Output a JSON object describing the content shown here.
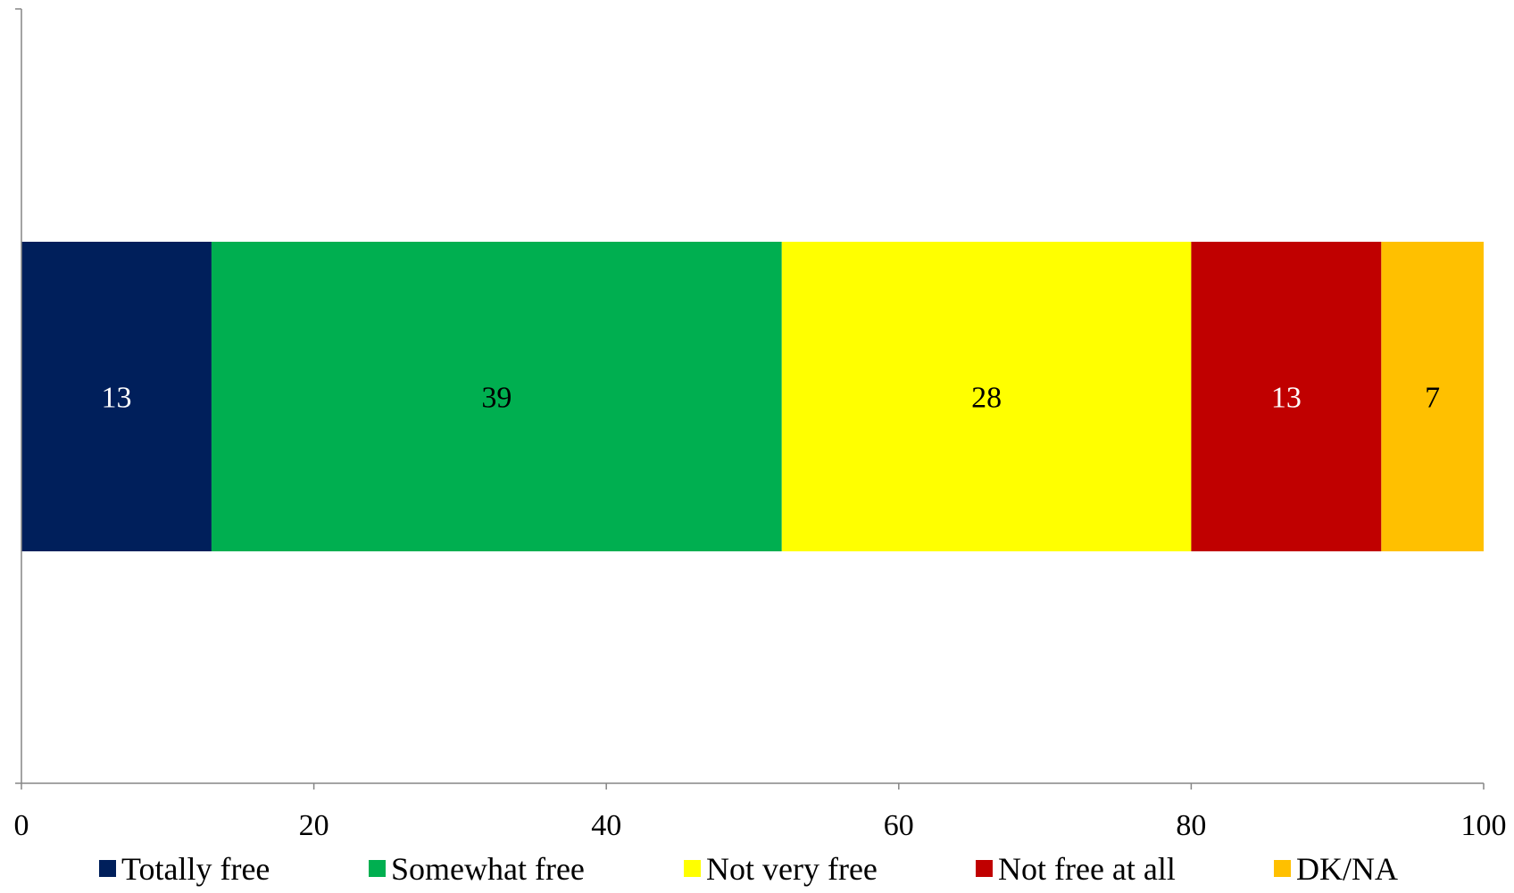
{
  "chart_data": {
    "type": "bar",
    "orientation": "horizontal",
    "stacked": true,
    "title": "",
    "xlabel": "",
    "ylabel": "",
    "xlim": [
      0,
      100
    ],
    "x_ticks": [
      "0",
      "20",
      "40",
      "60",
      "80",
      "100"
    ],
    "grid": false,
    "legend_position": "bottom",
    "categories": [
      ""
    ],
    "series": [
      {
        "name": "Totally free",
        "values": [
          13
        ],
        "label": "13",
        "color": "#001F5B",
        "label_color": "#FFFFFF"
      },
      {
        "name": "Somewhat free",
        "values": [
          39
        ],
        "label": "39",
        "color": "#00AF50",
        "label_color": "#000000"
      },
      {
        "name": "Not very free",
        "values": [
          28
        ],
        "label": "28",
        "color": "#FFFF00",
        "label_color": "#000000"
      },
      {
        "name": "Not free at all",
        "values": [
          13
        ],
        "label": "13",
        "color": "#C00000",
        "label_color": "#FFFFFF"
      },
      {
        "name": "DK/NA",
        "values": [
          7
        ],
        "label": "7",
        "color": "#FFC000",
        "label_color": "#000000"
      }
    ]
  }
}
